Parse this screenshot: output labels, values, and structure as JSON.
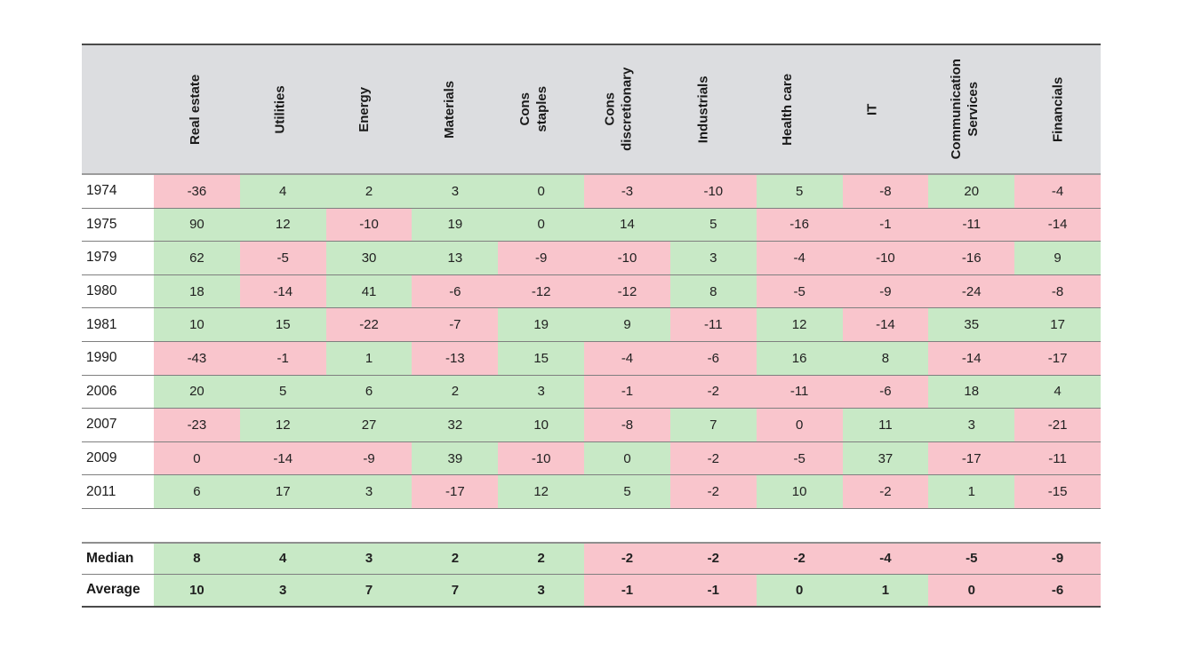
{
  "chart_data": {
    "type": "table",
    "description_colors": {
      "positive_bg": "#c8e9c6",
      "negative_bg": "#f9c5cc",
      "header_bg": "#dcdde0",
      "border_light": "#7f7f7f",
      "border_dark": "#4a4a4a",
      "text": "#212121"
    },
    "columns": [
      "Real estate",
      "Utilities",
      "Energy",
      "Materials",
      "Cons\nstaples",
      "Cons\ndiscretionary",
      "Industrials",
      "Health care",
      "IT",
      "Communication\nServices",
      "Financials"
    ],
    "rows": [
      {
        "label": "1974",
        "values": [
          -36,
          4,
          2,
          3,
          0,
          -3,
          -10,
          5,
          -8,
          20,
          -4
        ],
        "cell_colors": [
          "neg",
          "pos",
          "pos",
          "pos",
          "pos",
          "neg",
          "neg",
          "pos",
          "neg",
          "pos",
          "neg"
        ]
      },
      {
        "label": "1975",
        "values": [
          90,
          12,
          -10,
          19,
          0,
          14,
          5,
          -16,
          -1,
          -11,
          -14
        ],
        "cell_colors": [
          "pos",
          "pos",
          "neg",
          "pos",
          "pos",
          "pos",
          "pos",
          "neg",
          "neg",
          "neg",
          "neg"
        ]
      },
      {
        "label": "1979",
        "values": [
          62,
          -5,
          30,
          13,
          -9,
          -10,
          3,
          -4,
          -10,
          -16,
          9
        ],
        "cell_colors": [
          "pos",
          "neg",
          "pos",
          "pos",
          "neg",
          "neg",
          "pos",
          "neg",
          "neg",
          "neg",
          "pos"
        ]
      },
      {
        "label": "1980",
        "values": [
          18,
          -14,
          41,
          -6,
          -12,
          -12,
          8,
          -5,
          -9,
          -24,
          -8
        ],
        "cell_colors": [
          "pos",
          "neg",
          "pos",
          "neg",
          "neg",
          "neg",
          "pos",
          "neg",
          "neg",
          "neg",
          "neg"
        ]
      },
      {
        "label": "1981",
        "values": [
          10,
          15,
          -22,
          -7,
          19,
          9,
          -11,
          12,
          -14,
          35,
          17
        ],
        "cell_colors": [
          "pos",
          "pos",
          "neg",
          "neg",
          "pos",
          "pos",
          "neg",
          "pos",
          "neg",
          "pos",
          "pos"
        ]
      },
      {
        "label": "1990",
        "values": [
          -43,
          -1,
          1,
          -13,
          15,
          -4,
          -6,
          16,
          8,
          -14,
          -17
        ],
        "cell_colors": [
          "neg",
          "neg",
          "pos",
          "neg",
          "pos",
          "neg",
          "neg",
          "pos",
          "pos",
          "neg",
          "neg"
        ]
      },
      {
        "label": "2006",
        "values": [
          20,
          5,
          6,
          2,
          3,
          -1,
          -2,
          -11,
          -6,
          18,
          4
        ],
        "cell_colors": [
          "pos",
          "pos",
          "pos",
          "pos",
          "pos",
          "neg",
          "neg",
          "neg",
          "neg",
          "pos",
          "pos"
        ]
      },
      {
        "label": "2007",
        "values": [
          -23,
          12,
          27,
          32,
          10,
          -8,
          7,
          0,
          11,
          3,
          -21
        ],
        "cell_colors": [
          "neg",
          "pos",
          "pos",
          "pos",
          "pos",
          "neg",
          "pos",
          "neg",
          "pos",
          "pos",
          "neg"
        ]
      },
      {
        "label": "2009",
        "values": [
          0,
          -14,
          -9,
          39,
          -10,
          0,
          -2,
          -5,
          37,
          -17,
          -11
        ],
        "cell_colors": [
          "neg",
          "neg",
          "neg",
          "pos",
          "neg",
          "pos",
          "neg",
          "neg",
          "pos",
          "neg",
          "neg"
        ]
      },
      {
        "label": "2011",
        "values": [
          6,
          17,
          3,
          -17,
          12,
          5,
          -2,
          10,
          -2,
          1,
          -15
        ],
        "cell_colors": [
          "pos",
          "pos",
          "pos",
          "neg",
          "pos",
          "pos",
          "neg",
          "pos",
          "neg",
          "pos",
          "neg"
        ]
      }
    ],
    "summary_rows": [
      {
        "label": "Median",
        "values": [
          8,
          4,
          3,
          2,
          2,
          -2,
          -2,
          -2,
          -4,
          -5,
          -9
        ],
        "cell_colors": [
          "pos",
          "pos",
          "pos",
          "pos",
          "pos",
          "neg",
          "neg",
          "neg",
          "neg",
          "neg",
          "neg"
        ]
      },
      {
        "label": "Average",
        "values": [
          10,
          3,
          7,
          7,
          3,
          -1,
          -1,
          0,
          1,
          0,
          -6
        ],
        "cell_colors": [
          "pos",
          "pos",
          "pos",
          "pos",
          "pos",
          "neg",
          "neg",
          "pos",
          "pos",
          "neg",
          "neg"
        ]
      }
    ]
  }
}
